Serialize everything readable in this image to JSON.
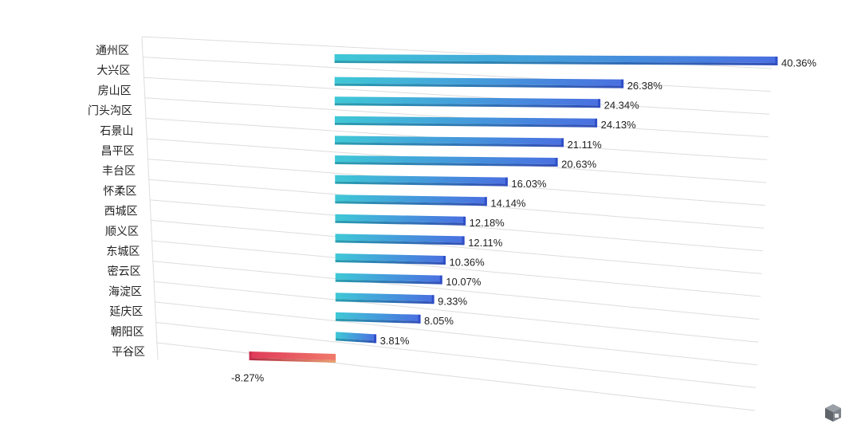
{
  "chart_data": {
    "type": "bar",
    "orientation": "horizontal",
    "title": "",
    "xlabel": "",
    "ylabel": "",
    "unit": "%",
    "categories": [
      "通州区",
      "大兴区",
      "房山区",
      "门头沟区",
      "石景山",
      "昌平区",
      "丰台区",
      "怀柔区",
      "西城区",
      "顺义区",
      "东城区",
      "密云区",
      "海淀区",
      "延庆区",
      "朝阳区",
      "平谷区"
    ],
    "values": [
      40.36,
      26.38,
      24.34,
      24.13,
      21.11,
      20.63,
      16.03,
      14.14,
      12.18,
      12.11,
      10.36,
      10.07,
      9.33,
      8.05,
      3.81,
      -8.27
    ],
    "value_labels": [
      "40.36%",
      "26.38%",
      "24.34%",
      "24.13%",
      "21.11%",
      "20.63%",
      "16.03%",
      "14.14%",
      "12.18%",
      "12.11%",
      "10.36%",
      "10.07%",
      "9.33%",
      "8.05%",
      "3.81%",
      "-8.27%"
    ],
    "xlim": [
      -8.27,
      40.36
    ],
    "grid": true,
    "legend": "none",
    "colors": {
      "positive_start": "#3fc8d6",
      "positive_end": "#4a6fe0",
      "negative_start": "#e03a5a",
      "negative_end": "#f07a6a",
      "grid": "#dddddd"
    }
  },
  "logo_icon": "cube-logo-icon"
}
